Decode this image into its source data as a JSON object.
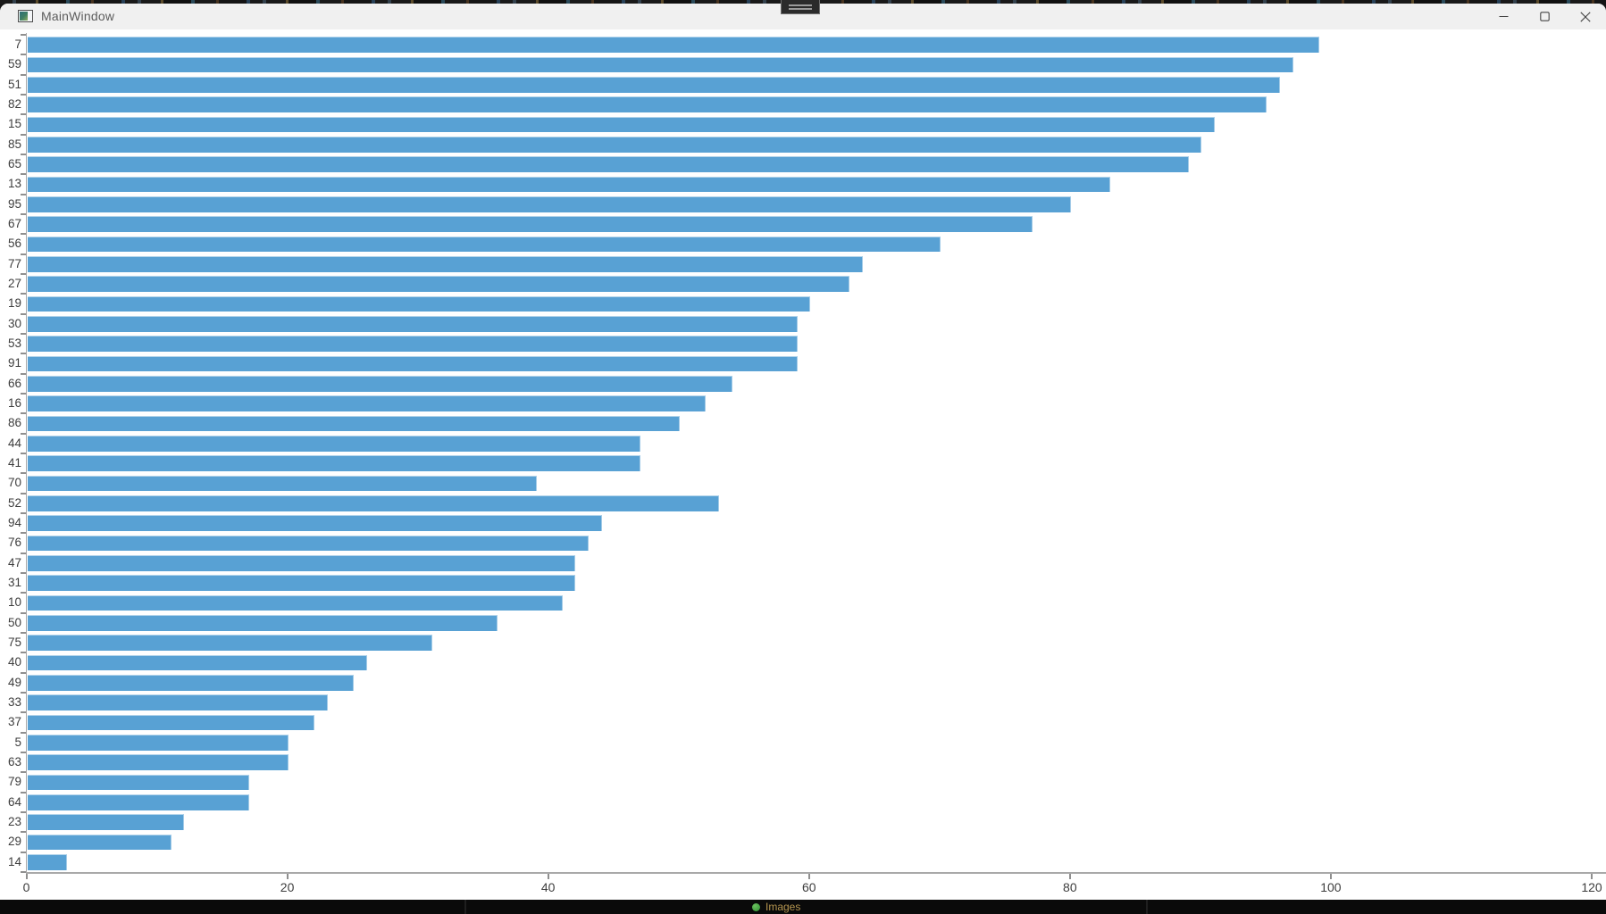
{
  "window": {
    "title": "MainWindow",
    "controls": {
      "minimize": "minimize",
      "maximize": "maximize",
      "close": "close"
    }
  },
  "taskbar": {
    "app_label": "Images"
  },
  "colors": {
    "bar_fill": "#58a1d4",
    "axis_line": "#a9a9a9",
    "tick_mark": "#8f8f8f",
    "tick_label": "#3d3d3d",
    "titlebar_bg": "#f0f0f0",
    "taskbar_bg": "#0a0a0a"
  },
  "chart_data": {
    "type": "bar",
    "orientation": "horizontal",
    "title": "",
    "xlabel": "",
    "ylabel": "",
    "grid": false,
    "legend": null,
    "xlim": [
      0,
      120
    ],
    "x_ticks": [
      0,
      20,
      40,
      60,
      80,
      100,
      120
    ],
    "categories": [
      "7",
      "59",
      "51",
      "82",
      "15",
      "85",
      "65",
      "13",
      "95",
      "67",
      "56",
      "77",
      "27",
      "19",
      "30",
      "53",
      "91",
      "66",
      "16",
      "86",
      "44",
      "41",
      "70",
      "52",
      "94",
      "76",
      "47",
      "31",
      "10",
      "50",
      "75",
      "40",
      "49",
      "33",
      "37",
      "5",
      "63",
      "79",
      "64",
      "23",
      "29",
      "14"
    ],
    "values": [
      99,
      97,
      96,
      95,
      91,
      90,
      89,
      83,
      80,
      77,
      70,
      64,
      63,
      60,
      59,
      59,
      59,
      54,
      52,
      50,
      47,
      47,
      39,
      53,
      44,
      43,
      42,
      42,
      41,
      36,
      31,
      26,
      25,
      23,
      22,
      20,
      20,
      17,
      17,
      12,
      11,
      3
    ]
  }
}
